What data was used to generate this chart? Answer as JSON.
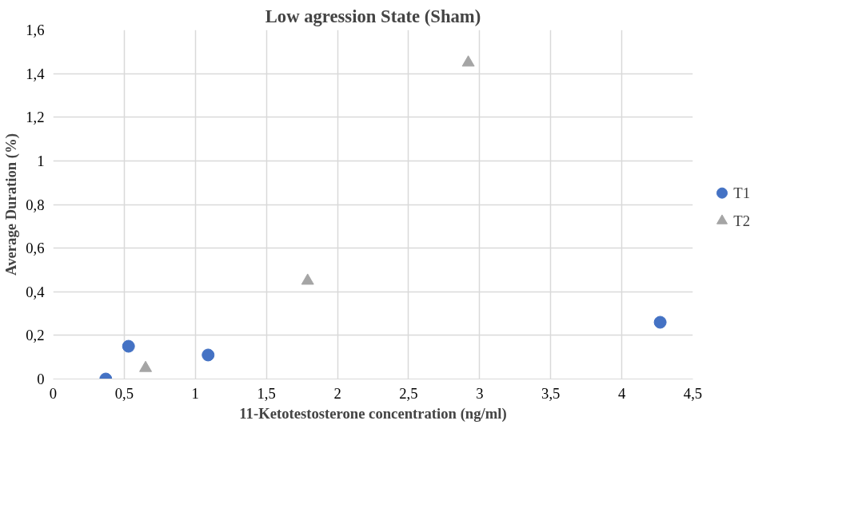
{
  "chart_data": {
    "type": "scatter",
    "title": "Low agression State (Sham)",
    "xlabel": "11-Ketotestosterone concentration (ng/ml)",
    "ylabel": "Average Duration (%)",
    "xlim": [
      0,
      4.5
    ],
    "xticks": [
      0,
      {
        "value": 0.5,
        "label": "0,5"
      },
      1,
      {
        "value": 1.5,
        "label": "1,5"
      },
      2,
      {
        "value": 2.5,
        "label": "2,5"
      },
      3,
      {
        "value": 3.5,
        "label": "3,5"
      },
      4,
      {
        "value": 4.5,
        "label": "4,5"
      }
    ],
    "ylim": [
      0,
      1.6
    ],
    "yticks": [
      0,
      {
        "value": 0.2,
        "label": "0,2"
      },
      {
        "value": 0.4,
        "label": "0,4"
      },
      {
        "value": 0.6,
        "label": "0,6"
      },
      {
        "value": 0.8,
        "label": "0,8"
      },
      1,
      {
        "value": 1.2,
        "label": "1,2"
      },
      {
        "value": 1.4,
        "label": "1,4"
      },
      {
        "value": 1.6,
        "label": "1,6"
      }
    ],
    "grid": true,
    "legend": "right",
    "series": [
      {
        "name": "T1",
        "color": "#4472c4",
        "marker": "circle",
        "x": [
          0.37,
          0.53,
          1.09,
          4.27
        ],
        "values": [
          0,
          0.15,
          0.11,
          0.26
        ]
      },
      {
        "name": "T2",
        "color": "#a5a5a5",
        "marker": "triangle",
        "x": [
          0.65,
          1.79,
          2.92
        ],
        "values": [
          0.05,
          0.45,
          1.45
        ]
      }
    ]
  }
}
